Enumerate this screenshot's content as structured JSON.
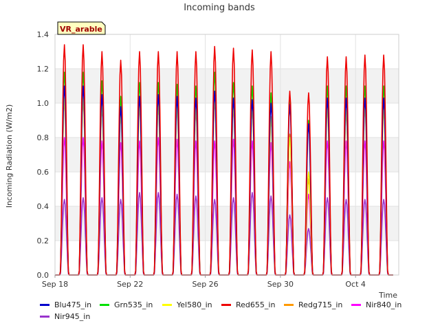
{
  "chart_data": {
    "type": "line",
    "title": "Incoming bands",
    "ylabel": "Incoming Radiation (W/m2)",
    "xlabel": "Time",
    "badge": "VR_arable",
    "ylim": [
      0,
      1.4
    ],
    "xlim_days_note": "",
    "y_ticks": [
      "0.0",
      "0.2",
      "0.4",
      "0.6",
      "0.8",
      "1.0",
      "1.2",
      "1.4"
    ],
    "x_ticks": [
      "Sep 18",
      "Sep 22",
      "Sep 26",
      "Sep 30",
      "Oct 4"
    ],
    "grid": true,
    "legend_position": "bottom",
    "colors": {
      "Blu475_in": "#0000cc",
      "Grn535_in": "#00e000",
      "Yel580_in": "#ffff00",
      "Red655_in": "#ee0000",
      "Redg715_in": "#ff9900",
      "Nir840_in": "#ff00ff",
      "Nir945_in": "#9933cc"
    },
    "series": [
      {
        "name": "Blu475_in",
        "daily_peaks": [
          1.1,
          1.1,
          1.05,
          0.98,
          1.04,
          1.05,
          1.04,
          1.03,
          1.07,
          1.03,
          1.02,
          1.0,
          0.99,
          0.88,
          1.03,
          1.03,
          1.03,
          1.03
        ]
      },
      {
        "name": "Grn535_in",
        "daily_peaks": [
          1.18,
          1.18,
          1.13,
          1.04,
          1.12,
          1.12,
          1.11,
          1.1,
          1.18,
          1.12,
          1.1,
          1.06,
          1.04,
          0.9,
          1.1,
          1.1,
          1.1,
          1.1
        ]
      },
      {
        "name": "Yel580_in",
        "daily_peaks": [
          1.03,
          1.03,
          0.99,
          0.94,
          0.99,
          0.99,
          0.98,
          0.97,
          1.03,
          0.99,
          0.97,
          0.92,
          0.8,
          0.6,
          0.97,
          0.96,
          0.98,
          0.96
        ]
      },
      {
        "name": "Red655_in",
        "daily_peaks": [
          1.34,
          1.34,
          1.3,
          1.25,
          1.3,
          1.3,
          1.3,
          1.3,
          1.33,
          1.32,
          1.31,
          1.3,
          1.07,
          1.06,
          1.27,
          1.27,
          1.28,
          1.28
        ]
      },
      {
        "name": "Redg715_in",
        "daily_peaks": [
          1.02,
          1.02,
          0.98,
          0.94,
          0.99,
          0.99,
          0.98,
          0.96,
          1.02,
          0.98,
          0.97,
          0.92,
          0.82,
          0.56,
          0.98,
          0.96,
          0.98,
          0.98
        ]
      },
      {
        "name": "Nir840_in",
        "daily_peaks": [
          0.8,
          0.8,
          0.78,
          0.77,
          0.78,
          0.8,
          0.79,
          0.78,
          0.78,
          0.79,
          0.78,
          0.77,
          0.66,
          0.47,
          0.78,
          0.78,
          0.78,
          0.78
        ]
      },
      {
        "name": "Nir945_in",
        "daily_peaks": [
          0.44,
          0.45,
          0.45,
          0.44,
          0.48,
          0.48,
          0.47,
          0.46,
          0.44,
          0.45,
          0.48,
          0.46,
          0.35,
          0.27,
          0.45,
          0.44,
          0.44,
          0.44
        ]
      }
    ],
    "x_days": [
      "Sep 18",
      "Sep 19",
      "Sep 20",
      "Sep 21",
      "Sep 22",
      "Sep 23",
      "Sep 24",
      "Sep 25",
      "Sep 26",
      "Sep 27",
      "Sep 28",
      "Sep 29",
      "Sep 30",
      "Oct 1",
      "Oct 2",
      "Oct 3",
      "Oct 4",
      "Oct 5"
    ]
  }
}
